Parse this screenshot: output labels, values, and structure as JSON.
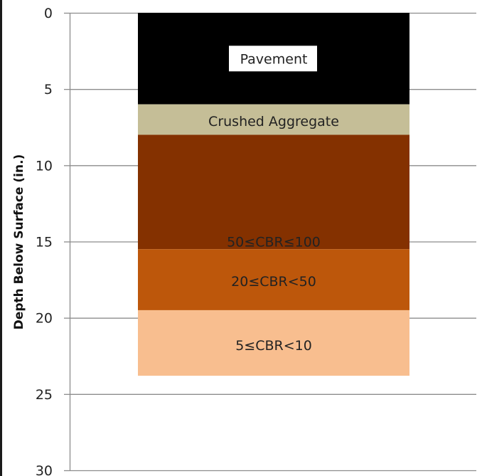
{
  "chart_data": {
    "type": "bar",
    "orientation": "stacked-vertical-column",
    "y_axis": {
      "label": "Depth Below Surface (in.)",
      "range": [
        0,
        30
      ],
      "inverted": true,
      "ticks": [
        0,
        5,
        10,
        15,
        20,
        25,
        30
      ],
      "tick_labels": [
        "0",
        "5",
        "10",
        "15",
        "20",
        "25",
        "30"
      ],
      "gridlines": true
    },
    "layers": [
      {
        "name": "Pavement",
        "top": 0,
        "bottom": 6,
        "color": "#000000",
        "label": "Pavement",
        "label_boxed": true,
        "label_color": "#111111"
      },
      {
        "name": "Crushed Aggregate",
        "top": 6,
        "bottom": 8,
        "color": "#c5be97",
        "label": "Crushed Aggregate",
        "label_boxed": false,
        "label_color": "#222222"
      },
      {
        "name": "50≤CBR≤100",
        "top": 8,
        "bottom": 15.5,
        "color": "#843100",
        "label": "50≤CBR≤100",
        "label_boxed": false,
        "label_color": "#222222"
      },
      {
        "name": "20≤CBR<50",
        "top": 15.5,
        "bottom": 19.5,
        "color": "#bd570b",
        "label": "20≤CBR<50",
        "label_boxed": false,
        "label_color": "#222222"
      },
      {
        "name": "5≤CBR<10",
        "top": 19.5,
        "bottom": 23.8,
        "color": "#f8be8f",
        "label": "5≤CBR<10",
        "label_boxed": false,
        "label_color": "#222222"
      }
    ],
    "title": "",
    "xlabel": ""
  }
}
